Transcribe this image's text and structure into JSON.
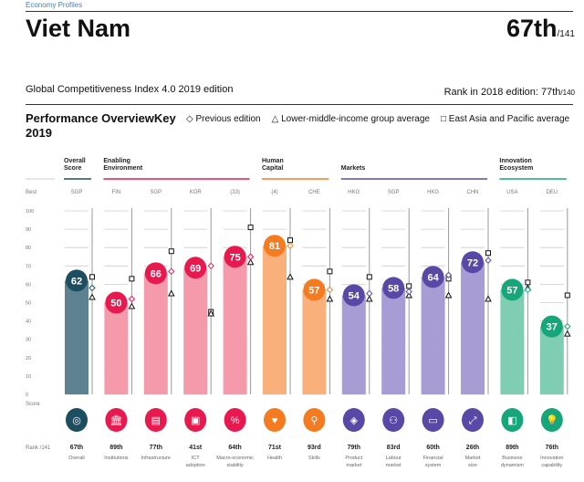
{
  "header": {
    "section": "Economy Profiles",
    "country": "Viet Nam",
    "rank": "67th",
    "rank_total": "/141",
    "edition": "Global Competitiveness Index 4.0 2019 edition",
    "prev_rank_label": "Rank in 2018 edition: 77th",
    "prev_rank_total": "/140"
  },
  "overview": {
    "title": "Performance Overview",
    "year": "2019",
    "key_label": "Key",
    "legend": [
      {
        "symbol": "diamond",
        "label": "Previous edition"
      },
      {
        "symbol": "triangle",
        "label": "Lower-middle-income group average"
      },
      {
        "symbol": "square",
        "label": "East Asia and Pacific average"
      }
    ]
  },
  "chart_data": {
    "type": "bar",
    "ylim": [
      0,
      100
    ],
    "yticks": [
      100,
      90,
      80,
      70,
      60,
      50,
      40,
      30,
      20,
      10,
      0
    ],
    "best_label": "Best",
    "score_label": "Score",
    "rank_label": "Rank /141",
    "groups": [
      {
        "name": "Overall Score",
        "color": "#1d4e60",
        "bar": "#5d8191",
        "cols": [
          0
        ]
      },
      {
        "name": "Enabling Environment",
        "color": "#e8194f",
        "bar": "#f59aab",
        "cols": [
          1,
          2,
          3,
          4
        ]
      },
      {
        "name": "Human Capital",
        "color": "#f47b20",
        "bar": "#f9b07a",
        "cols": [
          5,
          6
        ]
      },
      {
        "name": "Markets",
        "color": "#5a48a6",
        "bar": "#a79cd4",
        "cols": [
          7,
          8,
          9,
          10
        ]
      },
      {
        "name": "Innovation Ecosystem",
        "color": "#17a57a",
        "bar": "#7fcdb2",
        "cols": [
          11,
          12
        ]
      }
    ],
    "categories": [
      "Overall",
      "Institutions",
      "Infrastructure",
      "ICT adoption",
      "Macro-economic stability",
      "Health",
      "Skills",
      "Product market",
      "Labour market",
      "Financial system",
      "Market size",
      "Business dynamism",
      "Innovation capability"
    ],
    "best": [
      "SGP",
      "FIN",
      "SGP",
      "KOR",
      "(33)",
      "(4)",
      "CHE",
      "HKG",
      "SGP",
      "HKG",
      "CHN",
      "USA",
      "DEU"
    ],
    "ranks": [
      "67th",
      "89th",
      "77th",
      "41st",
      "64th",
      "71st",
      "93rd",
      "79th",
      "83rd",
      "60th",
      "26th",
      "89th",
      "76th"
    ],
    "series": [
      {
        "name": "Score 2019",
        "values": [
          62,
          50,
          66,
          69,
          75,
          81,
          57,
          54,
          58,
          64,
          72,
          57,
          37
        ]
      },
      {
        "name": "Previous edition",
        "values": [
          58,
          52,
          67,
          70,
          75,
          81,
          57,
          55,
          56,
          65,
          73,
          57,
          37
        ]
      },
      {
        "name": "Lower-middle-income group average",
        "values": [
          53,
          48,
          55,
          44,
          72,
          64,
          52,
          52,
          54,
          54,
          52,
          58,
          33
        ]
      },
      {
        "name": "East Asia and Pacific average",
        "values": [
          64,
          63,
          78,
          45,
          91,
          84,
          67,
          64,
          59,
          63,
          77,
          61,
          54
        ]
      }
    ]
  }
}
